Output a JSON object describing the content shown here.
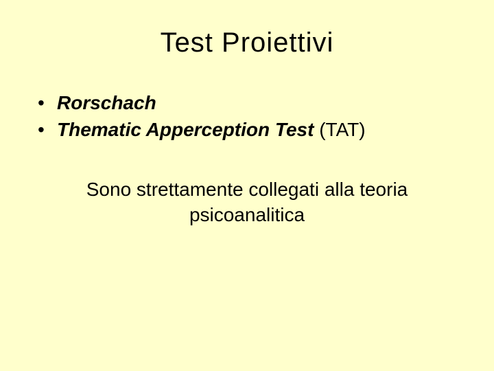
{
  "slide": {
    "title": "Test  Proiettivi",
    "bullets": [
      {
        "bold_italic": "Rorschach",
        "normal": ""
      },
      {
        "bold_italic": "Thematic Apperception Test",
        "normal": " (TAT)"
      }
    ],
    "footer_line1": "Sono strettamente collegati alla teoria",
    "footer_line2": "psicoanalitica"
  },
  "colors": {
    "background": "#ffffcc",
    "text": "#000000"
  },
  "typography": {
    "title_fontsize": 40,
    "body_fontsize": 28,
    "font_family": "Arial"
  }
}
